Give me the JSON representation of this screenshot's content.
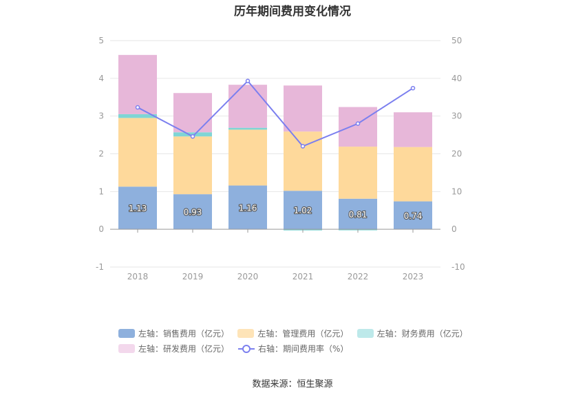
{
  "chart_data": {
    "type": "bar",
    "title": "历年期间费用变化情况",
    "categories": [
      "2018",
      "2019",
      "2020",
      "2021",
      "2022",
      "2023"
    ],
    "stacked": true,
    "y_left_lim": [
      -1,
      5
    ],
    "y_left_ticks": [
      "-1",
      "0",
      "1",
      "2",
      "3",
      "4",
      "5"
    ],
    "y_right_lim": [
      -10,
      50
    ],
    "y_right_ticks": [
      "-10",
      "0",
      "10",
      "20",
      "30",
      "40",
      "50"
    ],
    "grid": true,
    "legend_position": "bottom",
    "series": [
      {
        "name": "左轴：销售费用（亿元）",
        "axis": "left",
        "type": "bar",
        "color": "#8eb0dd",
        "values": [
          1.13,
          0.93,
          1.16,
          1.02,
          0.81,
          0.74
        ],
        "labels": [
          "1.13",
          "0.93",
          "1.16",
          "1.02",
          "0.81",
          "0.74"
        ]
      },
      {
        "name": "左轴：管理费用（亿元）",
        "axis": "left",
        "type": "bar",
        "color": "#fed99b",
        "values": [
          1.82,
          1.53,
          1.48,
          1.57,
          1.38,
          1.44
        ]
      },
      {
        "name": "左轴：财务费用（亿元）",
        "axis": "left",
        "type": "bar",
        "color": "#7fd5d5",
        "values": [
          0.1,
          0.11,
          0.05,
          -0.03,
          -0.01,
          0.0
        ]
      },
      {
        "name": "左轴：研发费用（亿元）",
        "axis": "left",
        "type": "bar",
        "color": "#e7b7d9",
        "values": [
          1.57,
          1.04,
          1.14,
          1.22,
          1.05,
          0.92
        ]
      },
      {
        "name": "右轴：期间费用率（%）",
        "axis": "right",
        "type": "line",
        "color": "#7b7fef",
        "values": [
          32.3,
          24.6,
          39.3,
          22.0,
          28.0,
          37.4
        ]
      }
    ],
    "legend_colors": [
      "#8eb0dd",
      "#fee4b8",
      "#bde9ea",
      "#f3d8ec",
      "#7b7fef"
    ]
  },
  "source": "数据来源：恒生聚源"
}
